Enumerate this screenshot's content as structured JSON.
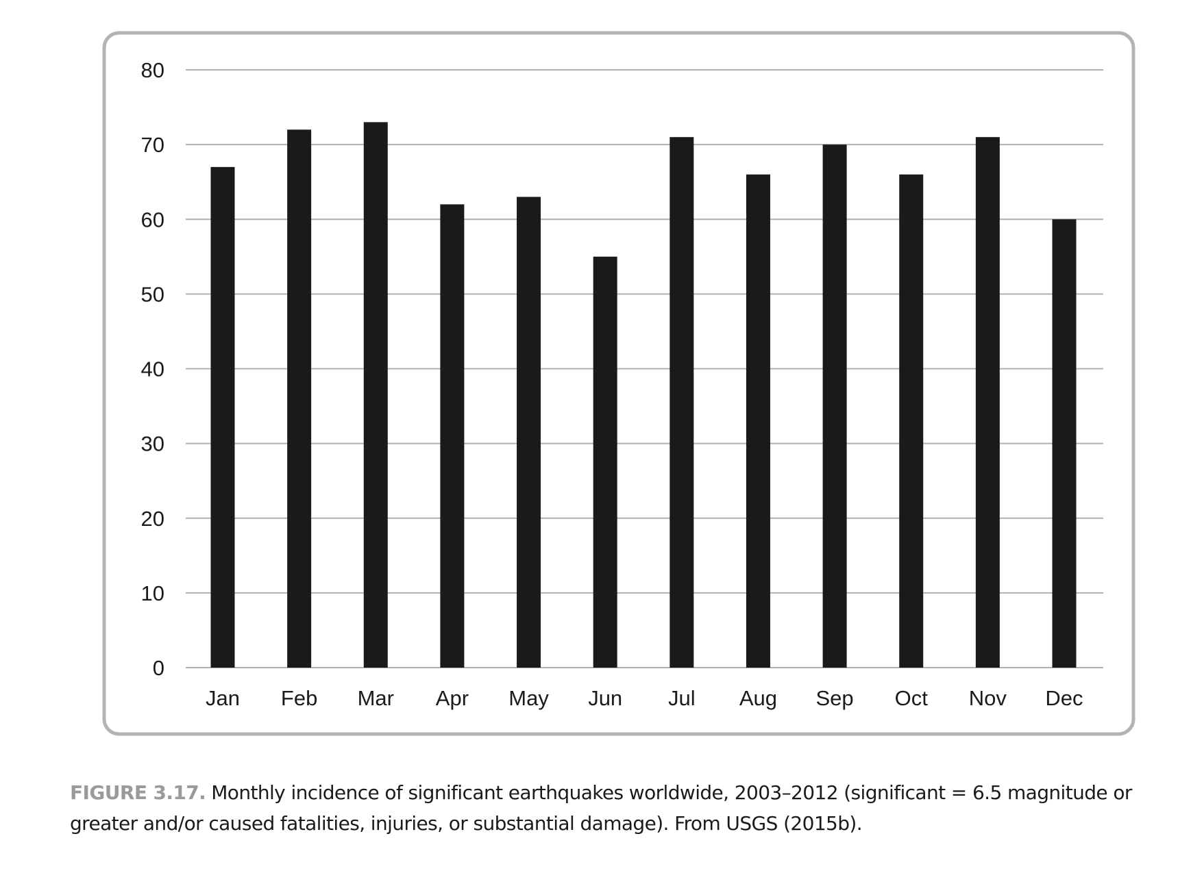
{
  "chart_data": {
    "type": "bar",
    "categories": [
      "Jan",
      "Feb",
      "Mar",
      "Apr",
      "May",
      "Jun",
      "Jul",
      "Aug",
      "Sep",
      "Oct",
      "Nov",
      "Dec"
    ],
    "values": [
      67,
      72,
      73,
      62,
      63,
      55,
      71,
      66,
      70,
      66,
      71,
      60
    ],
    "ylim": [
      0,
      80
    ],
    "yticks": [
      0,
      10,
      20,
      30,
      40,
      50,
      60,
      70,
      80
    ],
    "grid": true,
    "bar_color": "#1a1a1a",
    "grid_color": "#b0b0b0",
    "frame_color": "#b3b3b3"
  },
  "caption": {
    "label": "FIGURE 3.17.",
    "text": "Monthly incidence of significant earthquakes worldwide, 2003–2012 (significant = 6.5 magni­tude or greater and/or caused fatalities, injuries, or substantial damage). From USGS (2015b)."
  }
}
